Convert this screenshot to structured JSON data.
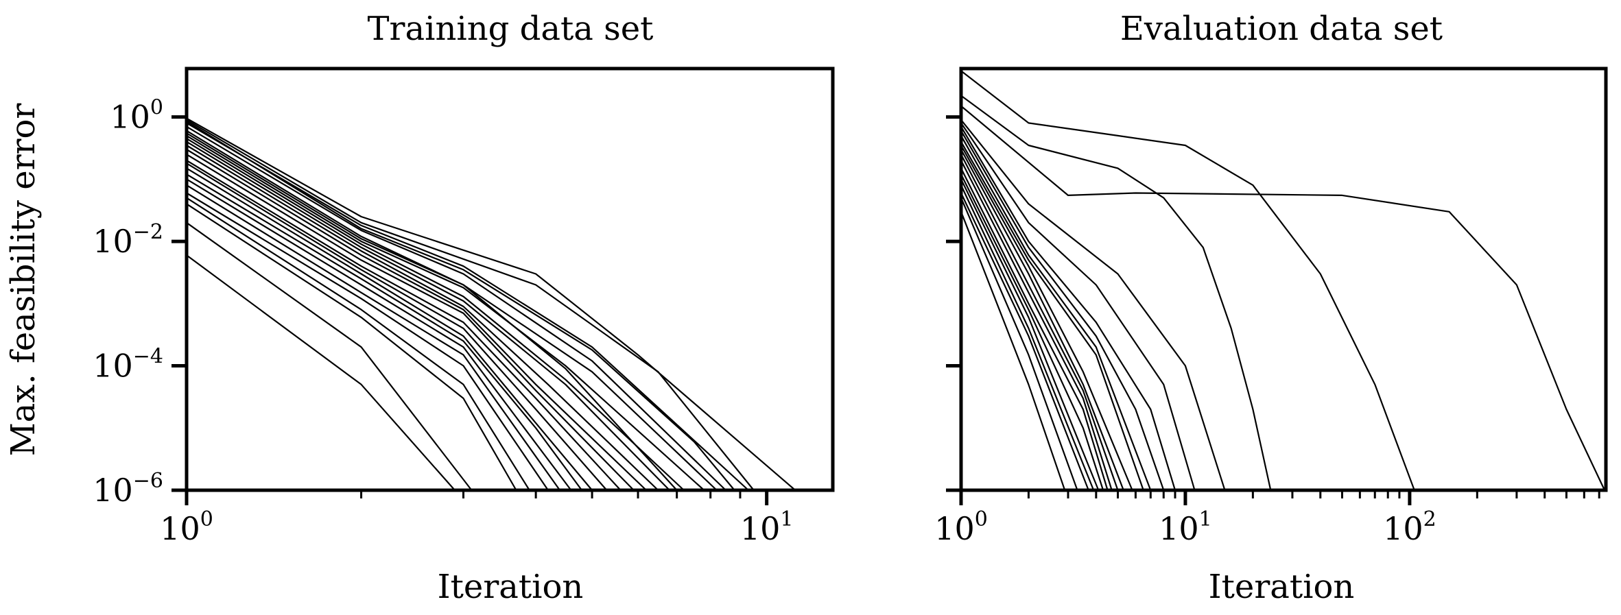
{
  "chart_data": [
    {
      "type": "line",
      "title": "Training data set",
      "xlabel": "Iteration",
      "ylabel": "Max. feasibility error",
      "xscale": "log",
      "yscale": "log",
      "xlim": [
        1,
        13
      ],
      "ylim": [
        1e-06,
        6
      ],
      "grid": false,
      "legend": "none",
      "x_ticks": [
        {
          "base": "10",
          "exp": "0"
        },
        {
          "base": "10",
          "exp": "1"
        }
      ],
      "y_ticks": [
        {
          "base": "10",
          "exp": "0"
        },
        {
          "base": "10",
          "exp": "−2"
        },
        {
          "base": "10",
          "exp": "−4"
        },
        {
          "base": "10",
          "exp": "−6"
        }
      ],
      "series_color": "#000000",
      "series": [
        {
          "points": [
            [
              1,
              0.95
            ],
            [
              2,
              0.025
            ],
            [
              4,
              0.003
            ],
            [
              6,
              0.00015
            ],
            [
              11.2,
              1e-06
            ]
          ]
        },
        {
          "points": [
            [
              1,
              0.9
            ],
            [
              2,
              0.02
            ],
            [
              4,
              0.002
            ],
            [
              6.5,
              8e-05
            ],
            [
              9.5,
              1e-06
            ]
          ]
        },
        {
          "points": [
            [
              1,
              0.8
            ],
            [
              2,
              0.018
            ],
            [
              3,
              0.004
            ],
            [
              5,
              0.0002
            ],
            [
              9.3,
              1e-06
            ]
          ]
        },
        {
          "points": [
            [
              1,
              0.7
            ],
            [
              2,
              0.015
            ],
            [
              3,
              0.003
            ],
            [
              5,
              0.00012
            ],
            [
              8.5,
              1e-06
            ]
          ]
        },
        {
          "points": [
            [
              1,
              0.6
            ],
            [
              2,
              0.012
            ],
            [
              3,
              0.002
            ],
            [
              5,
              8e-05
            ],
            [
              8.2,
              1e-06
            ]
          ]
        },
        {
          "points": [
            [
              1,
              0.5
            ],
            [
              2,
              0.01
            ],
            [
              3,
              0.0018
            ],
            [
              4.5,
              0.0001
            ],
            [
              7.8,
              1e-06
            ]
          ]
        },
        {
          "points": [
            [
              1,
              0.45
            ],
            [
              2,
              0.009
            ],
            [
              3,
              0.0013
            ],
            [
              4.5,
              6e-05
            ],
            [
              7.2,
              1e-06
            ]
          ]
        },
        {
          "points": [
            [
              1,
              0.4
            ],
            [
              2,
              0.008
            ],
            [
              3,
              0.0011
            ],
            [
              4.5,
              5e-05
            ],
            [
              6.8,
              1e-06
            ]
          ]
        },
        {
          "points": [
            [
              1,
              0.35
            ],
            [
              2,
              0.007
            ],
            [
              3,
              0.0009
            ],
            [
              4.2,
              5e-05
            ],
            [
              6.5,
              1e-06
            ]
          ]
        },
        {
          "points": [
            [
              1,
              0.3
            ],
            [
              2,
              0.006
            ],
            [
              3,
              0.0008
            ],
            [
              4,
              5e-05
            ],
            [
              6.2,
              1e-06
            ]
          ]
        },
        {
          "points": [
            [
              1,
              0.25
            ],
            [
              2,
              0.005
            ],
            [
              3,
              0.0007
            ],
            [
              4,
              4e-05
            ],
            [
              5.9,
              1e-06
            ]
          ]
        },
        {
          "points": [
            [
              1,
              0.2
            ],
            [
              2,
              0.004
            ],
            [
              3,
              0.0005
            ],
            [
              4,
              3e-05
            ],
            [
              5.6,
              1e-06
            ]
          ]
        },
        {
          "points": [
            [
              1,
              0.18
            ],
            [
              2,
              0.0035
            ],
            [
              3,
              0.0004
            ],
            [
              4,
              2e-05
            ],
            [
              5.3,
              1e-06
            ]
          ]
        },
        {
          "points": [
            [
              1,
              0.15
            ],
            [
              2,
              0.003
            ],
            [
              3,
              0.0003
            ],
            [
              4,
              1.2e-05
            ],
            [
              5,
              1e-06
            ]
          ]
        },
        {
          "points": [
            [
              1,
              0.12
            ],
            [
              2,
              0.0025
            ],
            [
              3,
              0.00025
            ],
            [
              4,
              1e-05
            ],
            [
              4.8,
              1e-06
            ]
          ]
        },
        {
          "points": [
            [
              1,
              0.1
            ],
            [
              2,
              0.002
            ],
            [
              3,
              0.0002
            ],
            [
              4.6,
              1e-06
            ]
          ]
        },
        {
          "points": [
            [
              1,
              0.08
            ],
            [
              2,
              0.0015
            ],
            [
              3,
              0.00015
            ],
            [
              4.4,
              1e-06
            ]
          ]
        },
        {
          "points": [
            [
              1,
              0.06
            ],
            [
              2,
              0.0012
            ],
            [
              3,
              0.0001
            ],
            [
              4.2,
              1e-06
            ]
          ]
        },
        {
          "points": [
            [
              1,
              0.05
            ],
            [
              2,
              0.0008
            ],
            [
              3,
              5e-05
            ],
            [
              3.9,
              1e-06
            ]
          ]
        },
        {
          "points": [
            [
              1,
              0.04
            ],
            [
              2,
              0.0006
            ],
            [
              3,
              3e-05
            ],
            [
              3.7,
              1e-06
            ]
          ]
        },
        {
          "points": [
            [
              1,
              0.02
            ],
            [
              2,
              0.0002
            ],
            [
              3.1,
              1e-06
            ]
          ]
        },
        {
          "points": [
            [
              1,
              0.006
            ],
            [
              2,
              5e-05
            ],
            [
              2.9,
              1e-06
            ]
          ]
        },
        {
          "points": [
            [
              1,
              0.85
            ],
            [
              2,
              0.016
            ],
            [
              3,
              0.0035
            ],
            [
              5,
              0.00018
            ],
            [
              7.5,
              6e-06
            ],
            [
              8.8,
              1e-06
            ]
          ]
        },
        {
          "points": [
            [
              1,
              0.55
            ],
            [
              2,
              0.011
            ],
            [
              3,
              0.002
            ],
            [
              4.5,
              9e-05
            ],
            [
              7.0,
              1e-06
            ]
          ]
        }
      ]
    },
    {
      "type": "line",
      "title": "Evaluation data set",
      "xlabel": "Iteration",
      "ylabel": "",
      "xscale": "log",
      "yscale": "log",
      "xlim": [
        1,
        750
      ],
      "ylim": [
        1e-06,
        6
      ],
      "grid": false,
      "legend": "none",
      "x_ticks": [
        {
          "base": "10",
          "exp": "0"
        },
        {
          "base": "10",
          "exp": "1"
        },
        {
          "base": "10",
          "exp": "2"
        }
      ],
      "y_ticks": [],
      "series_color": "#000000",
      "series": [
        {
          "points": [
            [
              1,
              5.5
            ],
            [
              2,
              0.8
            ],
            [
              5,
              0.5
            ],
            [
              10,
              0.35
            ],
            [
              20,
              0.08
            ],
            [
              40,
              0.003
            ],
            [
              70,
              5e-05
            ],
            [
              105,
              1e-06
            ]
          ]
        },
        {
          "points": [
            [
              1,
              2.2
            ],
            [
              2,
              0.35
            ],
            [
              5,
              0.15
            ],
            [
              8,
              0.05
            ],
            [
              12,
              0.008
            ],
            [
              16,
              0.0004
            ],
            [
              20,
              2e-05
            ],
            [
              24,
              1e-06
            ]
          ]
        },
        {
          "points": [
            [
              1,
              1.5
            ],
            [
              3,
              0.055
            ],
            [
              6,
              0.06
            ],
            [
              50,
              0.055
            ],
            [
              150,
              0.03
            ],
            [
              300,
              0.002
            ],
            [
              500,
              2e-05
            ],
            [
              740,
              1e-06
            ]
          ]
        },
        {
          "points": [
            [
              1,
              0.9
            ],
            [
              2,
              0.04
            ],
            [
              5,
              0.003
            ],
            [
              10,
              0.0001
            ],
            [
              15,
              1e-06
            ]
          ]
        },
        {
          "points": [
            [
              1,
              0.8
            ],
            [
              2,
              0.02
            ],
            [
              4,
              0.002
            ],
            [
              8,
              5e-05
            ],
            [
              11,
              1e-06
            ]
          ]
        },
        {
          "points": [
            [
              1,
              0.7
            ],
            [
              2,
              0.01
            ],
            [
              4,
              0.0005
            ],
            [
              7,
              2e-05
            ],
            [
              9,
              1e-06
            ]
          ]
        },
        {
          "points": [
            [
              1,
              0.6
            ],
            [
              2,
              0.008
            ],
            [
              4,
              0.0003
            ],
            [
              6,
              2e-05
            ],
            [
              8,
              1e-06
            ]
          ]
        },
        {
          "points": [
            [
              1,
              0.5
            ],
            [
              2,
              0.006
            ],
            [
              4,
              0.0002
            ],
            [
              7,
              1e-06
            ]
          ]
        },
        {
          "points": [
            [
              1,
              0.4
            ],
            [
              2,
              0.005
            ],
            [
              4,
              0.00015
            ],
            [
              6.5,
              1e-06
            ]
          ]
        },
        {
          "points": [
            [
              1,
              0.35
            ],
            [
              2,
              0.004
            ],
            [
              3.5,
              8e-05
            ],
            [
              5.8,
              1e-06
            ]
          ]
        },
        {
          "points": [
            [
              1,
              0.3
            ],
            [
              2,
              0.003
            ],
            [
              3.5,
              5e-05
            ],
            [
              5.3,
              1e-06
            ]
          ]
        },
        {
          "points": [
            [
              1,
              0.25
            ],
            [
              2,
              0.002
            ],
            [
              3.5,
              4e-05
            ],
            [
              5.0,
              1e-06
            ]
          ]
        },
        {
          "points": [
            [
              1,
              0.2
            ],
            [
              2,
              0.0015
            ],
            [
              3.5,
              3e-05
            ],
            [
              4.7,
              1e-06
            ]
          ]
        },
        {
          "points": [
            [
              1,
              0.15
            ],
            [
              2,
              0.001
            ],
            [
              3.5,
              2e-05
            ],
            [
              4.5,
              1e-06
            ]
          ]
        },
        {
          "points": [
            [
              1,
              0.12
            ],
            [
              2,
              0.0008
            ],
            [
              3.5,
              1e-05
            ],
            [
              4.3,
              1e-06
            ]
          ]
        },
        {
          "points": [
            [
              1,
              0.1
            ],
            [
              2,
              0.0006
            ],
            [
              4.1,
              1e-06
            ]
          ]
        },
        {
          "points": [
            [
              1,
              0.08
            ],
            [
              2,
              0.0004
            ],
            [
              3.9,
              1e-06
            ]
          ]
        },
        {
          "points": [
            [
              1,
              0.06
            ],
            [
              2,
              0.0003
            ],
            [
              3.7,
              1e-06
            ]
          ]
        },
        {
          "points": [
            [
              1,
              0.05
            ],
            [
              2,
              0.00015
            ],
            [
              3.3,
              1e-06
            ]
          ]
        },
        {
          "points": [
            [
              1,
              0.03
            ],
            [
              2,
              5e-05
            ],
            [
              2.9,
              1e-06
            ]
          ]
        }
      ]
    }
  ]
}
